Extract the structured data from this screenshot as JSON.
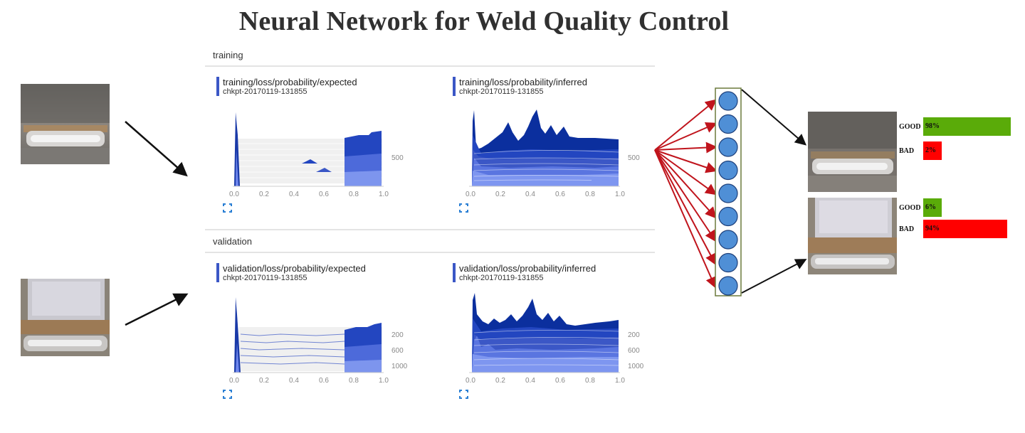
{
  "title": "Neural Network for Weld Quality Control",
  "dashboard": {
    "sections": [
      {
        "label": "training",
        "cards": [
          {
            "title": "training/loss/probability/expected",
            "checkpoint": "chkpt-20170119-131855",
            "x_ticks": [
              "0.0",
              "0.2",
              "0.4",
              "0.6",
              "0.8",
              "1.0"
            ],
            "y_ticks": [
              "500"
            ]
          },
          {
            "title": "training/loss/probability/inferred",
            "checkpoint": "chkpt-20170119-131855",
            "x_ticks": [
              "0.0",
              "0.2",
              "0.4",
              "0.6",
              "0.8",
              "1.0"
            ],
            "y_ticks": [
              "500"
            ]
          }
        ]
      },
      {
        "label": "validation",
        "cards": [
          {
            "title": "validation/loss/probability/expected",
            "checkpoint": "chkpt-20170119-131855",
            "x_ticks": [
              "0.0",
              "0.2",
              "0.4",
              "0.6",
              "0.8",
              "1.0"
            ],
            "y_ticks": [
              "200",
              "600",
              "1000"
            ]
          },
          {
            "title": "validation/loss/probability/inferred",
            "checkpoint": "chkpt-20170119-131855",
            "x_ticks": [
              "0.0",
              "0.2",
              "0.4",
              "0.6",
              "0.8",
              "1.0"
            ],
            "y_ticks": [
              "200",
              "600",
              "1000"
            ]
          }
        ]
      }
    ]
  },
  "network": {
    "node_count": 9
  },
  "results": [
    {
      "good_label": "GOOD",
      "good_value": "98%",
      "good_fraction": 0.98,
      "bad_label": "BAD",
      "bad_value": "2%",
      "bad_fraction": 0.02
    },
    {
      "good_label": "GOOD",
      "good_value": "6%",
      "good_fraction": 0.06,
      "bad_label": "BAD",
      "bad_value": "94%",
      "bad_fraction": 0.94
    }
  ],
  "colors": {
    "good": "#5aab09",
    "bad": "#ff0000",
    "histogram_dark": "#0b2f9e",
    "histogram_light": "#6f86ef",
    "node_fill": "#4f8fd6",
    "arrow_red": "#c0141c",
    "accent": "#3b57c6"
  }
}
